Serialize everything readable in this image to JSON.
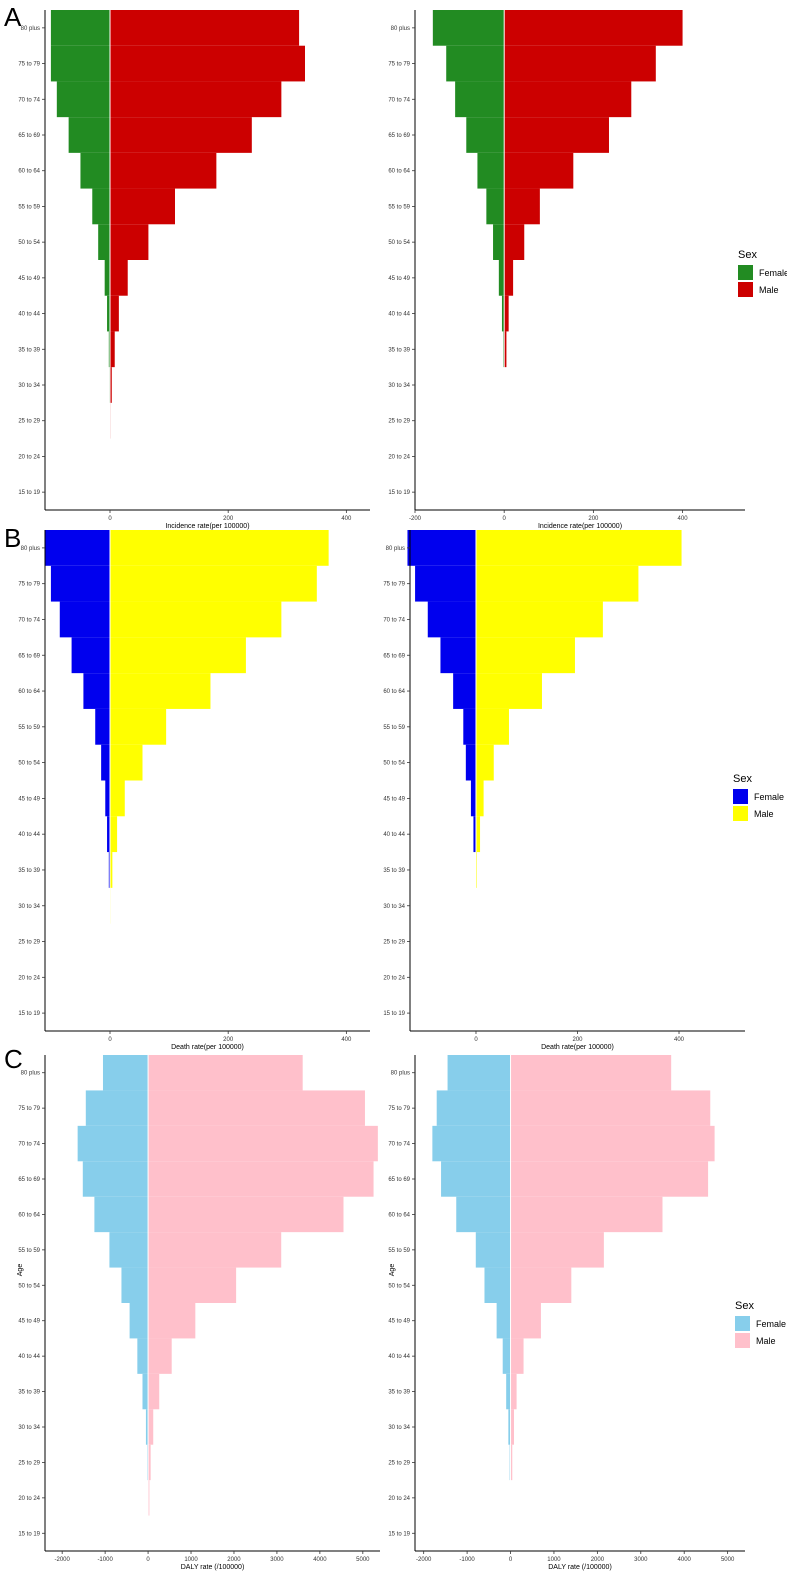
{
  "panels": [
    {
      "letter": "A",
      "xlabel": "Incidence rate(per 100000)",
      "legend": {
        "title": "Sex",
        "female_label": "Female",
        "male_label": "Male"
      }
    },
    {
      "letter": "B",
      "xlabel": "Death rate(per 100000)",
      "legend": {
        "title": "Sex",
        "female_label": "Female",
        "male_label": "Male"
      }
    },
    {
      "letter": "C",
      "xlabel": "DALY rate (/100000)",
      "ylabel": "Age",
      "legend": {
        "title": "Sex",
        "female_label": "Female",
        "male_label": "Male"
      }
    }
  ],
  "chart_data": [
    {
      "type": "bar",
      "orientation": "horizontal-pyramid",
      "panel": "A",
      "categories": [
        "15 to 19",
        "20 to 24",
        "25 to 29",
        "30 to 34",
        "35 to 39",
        "40 to 44",
        "45 to 49",
        "50 to 54",
        "55 to 59",
        "60 to 64",
        "65 to 69",
        "70 to 74",
        "75 to 79",
        "80 plus"
      ],
      "xlabel": "Incidence rate(per 100000)",
      "xticks": [
        0,
        200,
        400
      ],
      "xlim": [
        -110,
        440
      ],
      "colors": {
        "female": "#228B22",
        "male": "#CC0000"
      },
      "series": [
        {
          "name": "Female",
          "values": [
            0,
            0,
            0,
            -1,
            -2,
            -5,
            -9,
            -20,
            -30,
            -50,
            -70,
            -90,
            -100,
            -100
          ]
        },
        {
          "name": "Male",
          "values": [
            0,
            0,
            1,
            3,
            8,
            15,
            30,
            65,
            110,
            180,
            240,
            290,
            330,
            320
          ]
        }
      ]
    },
    {
      "type": "bar",
      "orientation": "horizontal-pyramid",
      "panel": "A",
      "categories": [
        "15 to 19",
        "20 to 24",
        "25 to 29",
        "30 to 34",
        "35 to 39",
        "40 to 44",
        "45 to 49",
        "50 to 54",
        "55 to 59",
        "60 to 64",
        "65 to 69",
        "70 to 74",
        "75 to 79",
        "80 plus"
      ],
      "xlabel": "Incidence rate(per 100000)",
      "xticks": [
        -200,
        0,
        200,
        400
      ],
      "xlim": [
        -200,
        540
      ],
      "colors": {
        "female": "#228B22",
        "male": "#CC0000"
      },
      "series": [
        {
          "name": "Female",
          "values": [
            0,
            0,
            0,
            0,
            -2,
            -5,
            -12,
            -25,
            -40,
            -60,
            -85,
            -110,
            -130,
            -160
          ]
        },
        {
          "name": "Male",
          "values": [
            0,
            0,
            0,
            0,
            5,
            10,
            20,
            45,
            80,
            155,
            235,
            285,
            340,
            400
          ]
        }
      ]
    },
    {
      "type": "bar",
      "orientation": "horizontal-pyramid",
      "panel": "B",
      "categories": [
        "15 to 19",
        "20 to 24",
        "25 to 29",
        "30 to 34",
        "35 to 39",
        "40 to 44",
        "45 to 49",
        "50 to 54",
        "55 to 59",
        "60 to 64",
        "65 to 69",
        "70 to 74",
        "75 to 79",
        "80 plus"
      ],
      "xlabel": "Death rate(per 100000)",
      "xticks": [
        0,
        200,
        400
      ],
      "xlim": [
        -110,
        440
      ],
      "colors": {
        "female": "#0000EE",
        "male": "#FFFF00"
      },
      "series": [
        {
          "name": "Female",
          "values": [
            0,
            0,
            0,
            0,
            -2,
            -5,
            -8,
            -15,
            -25,
            -45,
            -65,
            -85,
            -100,
            -110
          ]
        },
        {
          "name": "Male",
          "values": [
            0,
            0,
            0,
            1,
            4,
            12,
            25,
            55,
            95,
            170,
            230,
            290,
            350,
            370
          ]
        }
      ]
    },
    {
      "type": "bar",
      "orientation": "horizontal-pyramid",
      "panel": "B",
      "categories": [
        "15 to 19",
        "20 to 24",
        "25 to 29",
        "30 to 34",
        "35 to 39",
        "40 to 44",
        "45 to 49",
        "50 to 54",
        "55 to 59",
        "60 to 64",
        "65 to 69",
        "70 to 74",
        "75 to 79",
        "80 plus"
      ],
      "xlabel": "Death rate(per 100000)",
      "xticks": [
        0,
        200,
        400
      ],
      "xlim": [
        -130,
        530
      ],
      "colors": {
        "female": "#0000EE",
        "male": "#FFFF00"
      },
      "series": [
        {
          "name": "Female",
          "values": [
            0,
            0,
            0,
            0,
            0,
            -5,
            -10,
            -20,
            -25,
            -45,
            -70,
            -95,
            -120,
            -135
          ]
        },
        {
          "name": "Male",
          "values": [
            0,
            0,
            0,
            0,
            2,
            8,
            15,
            35,
            65,
            130,
            195,
            250,
            320,
            405
          ]
        }
      ]
    },
    {
      "type": "bar",
      "orientation": "horizontal-pyramid",
      "panel": "C",
      "categories": [
        "15 to 19",
        "20 to 24",
        "25 to 29",
        "30 to 34",
        "35 to 39",
        "40 to 44",
        "45 to 49",
        "50 to 54",
        "55 to 59",
        "60 to 64",
        "65 to 69",
        "70 to 74",
        "75 to 79",
        "80 plus"
      ],
      "xlabel": "DALY rate (/100000)",
      "ylabel": "Age",
      "xticks": [
        -2000,
        -1000,
        0,
        1000,
        2000,
        3000,
        4000,
        5000
      ],
      "xlim": [
        -2400,
        5400
      ],
      "colors": {
        "female": "#87CEEB",
        "male": "#FFC0CB"
      },
      "series": [
        {
          "name": "Female",
          "values": [
            0,
            0,
            -20,
            -50,
            -130,
            -250,
            -430,
            -620,
            -900,
            -1250,
            -1520,
            -1640,
            -1450,
            -1050
          ]
        },
        {
          "name": "Male",
          "values": [
            0,
            30,
            60,
            120,
            260,
            550,
            1100,
            2050,
            3100,
            4550,
            5250,
            5350,
            5050,
            3600
          ]
        }
      ]
    },
    {
      "type": "bar",
      "orientation": "horizontal-pyramid",
      "panel": "C",
      "categories": [
        "15 to 19",
        "20 to 24",
        "25 to 29",
        "30 to 34",
        "35 to 39",
        "40 to 44",
        "45 to 49",
        "50 to 54",
        "55 to 59",
        "60 to 64",
        "65 to 69",
        "70 to 74",
        "75 to 79",
        "80 plus"
      ],
      "xlabel": "DALY rate (/100000)",
      "ylabel": "Age",
      "xticks": [
        -2000,
        -1000,
        0,
        1000,
        2000,
        3000,
        4000,
        5000
      ],
      "xlim": [
        -2200,
        5400
      ],
      "colors": {
        "female": "#87CEEB",
        "male": "#FFC0CB"
      },
      "series": [
        {
          "name": "Female",
          "values": [
            0,
            0,
            -20,
            -50,
            -100,
            -180,
            -320,
            -600,
            -800,
            -1250,
            -1600,
            -1800,
            -1700,
            -1450
          ]
        },
        {
          "name": "Male",
          "values": [
            0,
            0,
            40,
            80,
            140,
            300,
            700,
            1400,
            2150,
            3500,
            4550,
            4700,
            4600,
            3700
          ]
        }
      ]
    }
  ]
}
